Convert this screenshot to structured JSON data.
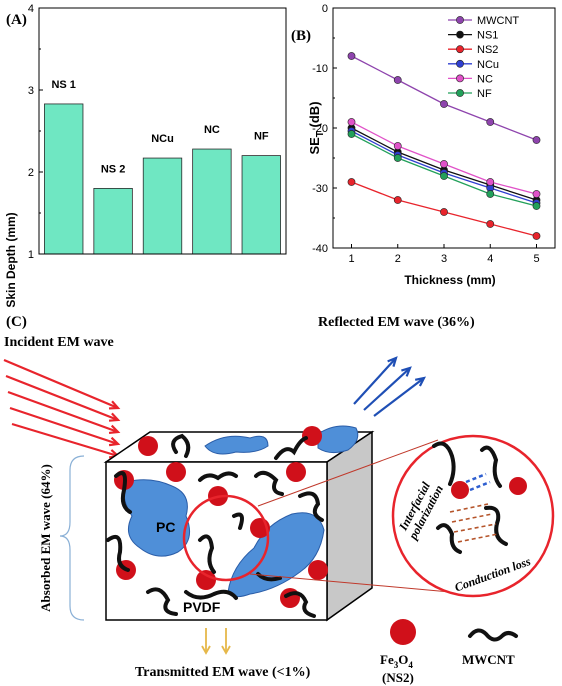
{
  "chart_data": [
    {
      "panel": "(A)",
      "type": "bar",
      "categories": [
        "NS 1",
        "NS 2",
        "NCu",
        "NC",
        "NF"
      ],
      "values": [
        2.83,
        1.8,
        2.17,
        2.28,
        2.2
      ],
      "ylabel": "Skin Depth (mm)",
      "ylim": [
        1,
        4
      ],
      "yticks": [
        "1",
        "2",
        "3",
        "4"
      ],
      "bar_color": "#6fe7c2"
    },
    {
      "panel": "(B)",
      "type": "line",
      "xlabel": "Thickness (mm)",
      "ylabel_main": "SE",
      "ylabel_sub": "T",
      "ylabel_unit": " (dB)",
      "x": [
        1,
        2,
        3,
        4,
        5
      ],
      "xticks": [
        "1",
        "2",
        "3",
        "4",
        "5"
      ],
      "yticks": [
        "-40",
        "-30",
        "-20",
        "-10",
        "0"
      ],
      "xlim": [
        0.6,
        5.4
      ],
      "ylim": [
        -40,
        0
      ],
      "legend_position": "top-right",
      "series": [
        {
          "name": "MWCNT",
          "color": "#8e44ad",
          "values": [
            -8,
            -12,
            -16,
            -19,
            -22
          ]
        },
        {
          "name": "NS1",
          "color": "#111111",
          "values": [
            -20,
            -24,
            -27,
            -29.5,
            -32
          ]
        },
        {
          "name": "NS2",
          "color": "#e8242c",
          "values": [
            -29,
            -32,
            -34,
            -36,
            -38
          ]
        },
        {
          "name": "NCu",
          "color": "#2f3fd0",
          "values": [
            -20.5,
            -24.5,
            -27.5,
            -30,
            -32.5
          ]
        },
        {
          "name": "NC",
          "color": "#e052c8",
          "values": [
            -19,
            -23,
            -26,
            -29,
            -31
          ]
        },
        {
          "name": "NF",
          "color": "#22a05a",
          "values": [
            -21,
            -25,
            -28,
            -31,
            -33
          ]
        }
      ]
    }
  ],
  "schematic": {
    "panel": "(C)",
    "incident": "Incident EM wave",
    "reflected": "Reflected EM wave (36%)",
    "absorbed": "Absorbed EM wave (64%)",
    "transmitted": "Transmitted EM wave (<1%)",
    "pc": "PC",
    "pvdf": "PVDF",
    "interfacial": "Interfacial",
    "polarization": "polarization",
    "conduction": "Conduction loss",
    "legend_fe_main": "Fe",
    "legend_fe_sub1": "3",
    "legend_fe_o": "O",
    "legend_fe_sub2": "4",
    "legend_fe_ns": "(NS2)",
    "legend_mwcnt": "MWCNT",
    "colors": {
      "arrow_red": "#e8242c",
      "arrow_blue": "#1f4fb5",
      "arrow_yellow": "#e6b84a",
      "particle": "#d0101a",
      "phase": "#4f8fd8",
      "cnt": "#111111"
    }
  }
}
